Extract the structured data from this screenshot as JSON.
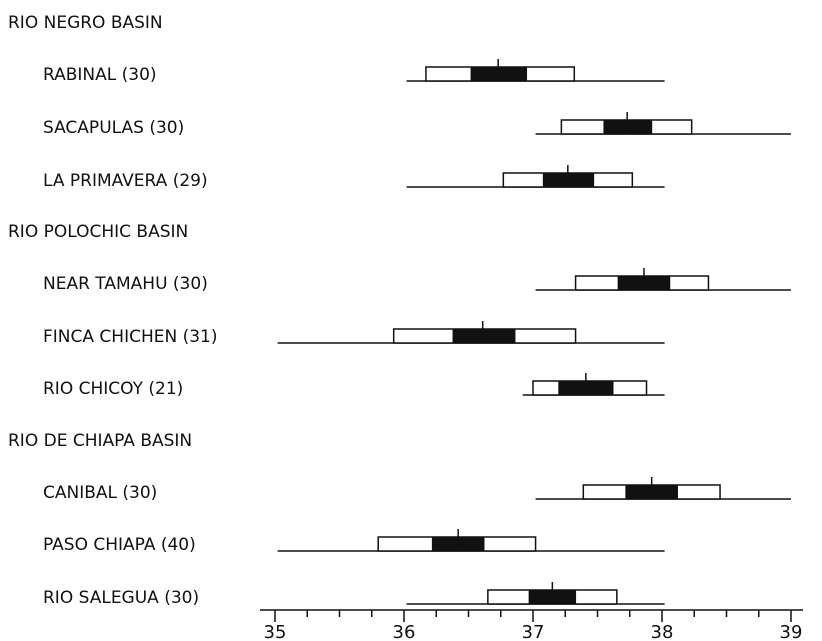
{
  "chart_data": {
    "type": "box",
    "xlim": [
      35,
      39
    ],
    "xticks": [
      "35",
      "36",
      "37",
      "38",
      "39"
    ],
    "groups": [
      {
        "label": "RIO NEGRO BASIN",
        "items": [
          {
            "label": "RABINAL (30)",
            "range": [
              36.02,
              38.02
            ],
            "sd": [
              36.17,
              37.32
            ],
            "ci": [
              36.52,
              36.95
            ],
            "mean": 36.73
          },
          {
            "label": "SACAPULAS (30)",
            "range": [
              37.02,
              39.0
            ],
            "sd": [
              37.22,
              38.23
            ],
            "ci": [
              37.55,
              37.92
            ],
            "mean": 37.73
          },
          {
            "label": "LA PRIMAVERA (29)",
            "range": [
              36.02,
              38.02
            ],
            "sd": [
              36.77,
              37.77
            ],
            "ci": [
              37.08,
              37.47
            ],
            "mean": 37.27
          }
        ]
      },
      {
        "label": "RIO POLOCHIC BASIN",
        "items": [
          {
            "label": "NEAR TAMAHU (30)",
            "range": [
              37.02,
              39.0
            ],
            "sd": [
              37.33,
              38.36
            ],
            "ci": [
              37.66,
              38.06
            ],
            "mean": 37.86
          },
          {
            "label": "FINCA CHICHEN (31)",
            "range": [
              35.02,
              38.02
            ],
            "sd": [
              35.92,
              37.33
            ],
            "ci": [
              36.38,
              36.86
            ],
            "mean": 36.61
          },
          {
            "label": "RIO CHICOY (21)",
            "range": [
              36.92,
              38.02
            ],
            "sd": [
              37.0,
              37.88
            ],
            "ci": [
              37.2,
              37.62
            ],
            "mean": 37.41
          }
        ]
      },
      {
        "label": "RIO DE CHIAPA BASIN",
        "items": [
          {
            "label": "CANIBAL (30)",
            "range": [
              37.02,
              39.0
            ],
            "sd": [
              37.39,
              38.45
            ],
            "ci": [
              37.72,
              38.12
            ],
            "mean": 37.92
          },
          {
            "label": "PASO CHIAPA (40)",
            "range": [
              35.02,
              38.02
            ],
            "sd": [
              35.8,
              37.02
            ],
            "ci": [
              36.22,
              36.62
            ],
            "mean": 36.42
          },
          {
            "label": "RIO SALEGUA (30)",
            "range": [
              36.02,
              38.02
            ],
            "sd": [
              36.65,
              37.65
            ],
            "ci": [
              36.97,
              37.33
            ],
            "mean": 37.15
          }
        ]
      }
    ]
  }
}
